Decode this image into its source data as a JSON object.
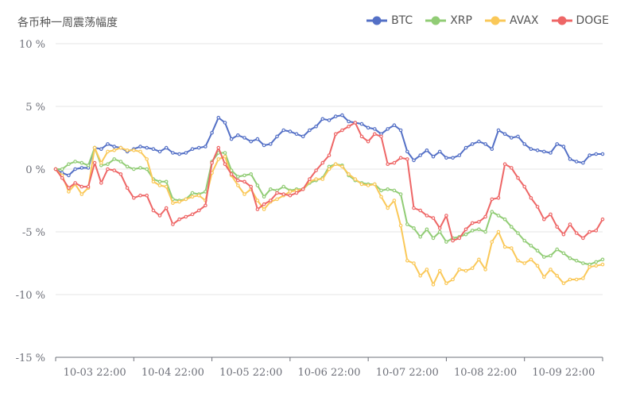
{
  "chart_data": {
    "type": "line",
    "title": "各币种一周震荡幅度",
    "x_tick_labels": [
      "10-03 22:00",
      "10-04 22:00",
      "10-05 22:00",
      "10-06 22:00",
      "10-07 22:00",
      "10-08 22:00",
      "10-09 22:00"
    ],
    "y_ticks": [
      10,
      5,
      0,
      -5,
      -10,
      -15
    ],
    "y_tick_labels": [
      "10 %",
      "5 %",
      "0 %",
      "-5 %",
      "-10 %",
      "-15 %"
    ],
    "ylim": [
      -15,
      10
    ],
    "legend_position": "top-right",
    "series": [
      {
        "name": "BTC",
        "color": "#5470c6",
        "values": [
          0,
          -0.3,
          -0.5,
          0,
          0.1,
          0.1,
          1.7,
          1.6,
          2,
          1.8,
          1.7,
          1.4,
          1.6,
          1.8,
          1.7,
          1.6,
          1.4,
          1.7,
          1.3,
          1.2,
          1.3,
          1.6,
          1.7,
          1.8,
          2.9,
          4.1,
          3.7,
          2.4,
          2.7,
          2.5,
          2.2,
          2.4,
          1.9,
          2,
          2.6,
          3.1,
          3,
          2.8,
          2.6,
          3.1,
          3.4,
          4,
          3.9,
          4.2,
          4.3,
          3.8,
          3.7,
          3.6,
          3.3,
          3.2,
          2.8,
          3.2,
          3.5,
          3.1,
          1.4,
          0.7,
          1.1,
          1.5,
          1,
          1.4,
          0.9,
          0.9,
          1.1,
          1.7,
          2,
          2.2,
          2,
          1.6,
          3.1,
          2.8,
          2.5,
          2.6,
          2,
          1.6,
          1.5,
          1.4,
          1.3,
          2,
          1.8,
          0.8,
          0.6,
          0.5,
          1.1,
          1.2,
          1.2
        ]
      },
      {
        "name": "XRP",
        "color": "#91cc75",
        "values": [
          0,
          0,
          0.4,
          0.6,
          0.5,
          0.3,
          1.7,
          0.3,
          0.4,
          0.8,
          0.6,
          0.2,
          0,
          0.1,
          0,
          -0.8,
          -1,
          -1,
          -2.4,
          -2.5,
          -2.4,
          -1.9,
          -2,
          -1.8,
          0.6,
          1.3,
          1.3,
          -0.1,
          -0.6,
          -0.5,
          -0.4,
          -1.3,
          -2.2,
          -1.6,
          -1.7,
          -1.4,
          -1.7,
          -1.6,
          -1.6,
          -1.1,
          -0.9,
          -0.7,
          0.2,
          0.4,
          0.3,
          -0.5,
          -0.9,
          -1.1,
          -1.2,
          -1.2,
          -1.7,
          -1.6,
          -1.7,
          -2,
          -4.4,
          -4.7,
          -5.4,
          -4.8,
          -5.5,
          -5,
          -5.8,
          -5.5,
          -5.4,
          -5.2,
          -4.9,
          -4.8,
          -5,
          -3.4,
          -3.7,
          -4,
          -4.6,
          -5.1,
          -5.7,
          -6.1,
          -6.5,
          -7,
          -6.9,
          -6.4,
          -6.7,
          -7.1,
          -7.3,
          -7.5,
          -7.6,
          -7.4,
          -7.2
        ]
      },
      {
        "name": "AVAX",
        "color": "#fac858",
        "values": [
          0,
          -0.5,
          -1.8,
          -1.2,
          -2,
          -1.5,
          1.7,
          0.5,
          1.4,
          1.5,
          1.7,
          1.5,
          1.5,
          1.4,
          0.8,
          -1,
          -1.3,
          -1.4,
          -2.7,
          -2.6,
          -2.4,
          -2.2,
          -2.1,
          -2.5,
          -0.3,
          0.8,
          1,
          -0.5,
          -1.3,
          -2,
          -1.6,
          -2.5,
          -3.2,
          -2.6,
          -2.4,
          -2.1,
          -1.8,
          -1.7,
          -1.6,
          -1,
          -0.8,
          -0.8,
          0,
          0.4,
          0.2,
          -0.4,
          -0.8,
          -1.2,
          -1.3,
          -1.2,
          -2.2,
          -3.1,
          -2.5,
          -4.5,
          -7.3,
          -7.5,
          -8.5,
          -8,
          -9.2,
          -8.1,
          -9.1,
          -8.8,
          -8,
          -8.1,
          -7.9,
          -7.2,
          -8,
          -5.8,
          -5,
          -6.2,
          -6.3,
          -7.3,
          -7.5,
          -7.2,
          -7.7,
          -8.6,
          -8,
          -8.5,
          -9.1,
          -8.8,
          -8.8,
          -8.7,
          -7.8,
          -7.7,
          -7.6
        ]
      },
      {
        "name": "DOGE",
        "color": "#ee6666",
        "values": [
          0,
          -0.7,
          -1.5,
          -1.1,
          -1.4,
          -1.4,
          0.5,
          -1.1,
          0,
          -0.1,
          -0.4,
          -1.5,
          -2.3,
          -2.1,
          -2.1,
          -3.3,
          -3.7,
          -3.1,
          -4.4,
          -4,
          -3.8,
          -3.6,
          -3.3,
          -2.9,
          0.5,
          1.7,
          0.4,
          -0.4,
          -0.9,
          -1,
          -1.4,
          -3.2,
          -2.8,
          -2.5,
          -1.9,
          -2,
          -2.1,
          -1.9,
          -1.6,
          -0.8,
          -0.1,
          0.5,
          1.1,
          2.8,
          3.1,
          3.4,
          3.7,
          2.6,
          2.2,
          2.8,
          2.6,
          0.4,
          0.5,
          0.9,
          0.8,
          -3.1,
          -3.3,
          -3.7,
          -3.9,
          -4.7,
          -3.7,
          -5.7,
          -5.5,
          -4.8,
          -4.3,
          -4.2,
          -3.8,
          -2.4,
          -2.3,
          0.4,
          0.1,
          -0.7,
          -1.4,
          -2.3,
          -3,
          -4,
          -3.6,
          -4.6,
          -5.2,
          -4.4,
          -5.1,
          -5.5,
          -5,
          -4.9,
          -4
        ]
      }
    ]
  }
}
